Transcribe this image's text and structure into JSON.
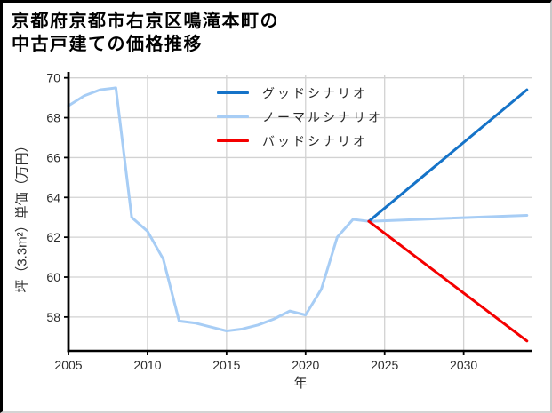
{
  "title": {
    "line1": "京都府京都市右京区鳴滝本町の",
    "line2": "中古戸建ての価格推移"
  },
  "chart_data": {
    "type": "line",
    "title": "京都府京都市右京区鳴滝本町の中古戸建ての価格推移",
    "xlabel": "年",
    "ylabel": "坪（3.3m²）単価（万円）",
    "xlim": [
      2005,
      2034.35
    ],
    "ylim": [
      56.3,
      70.12
    ],
    "xticks": [
      2005,
      2010,
      2015,
      2020,
      2025,
      2030
    ],
    "yticks": [
      58,
      60,
      62,
      64,
      66,
      68,
      70
    ],
    "grid": true,
    "grid_color": "#d2d2d2",
    "legend_position": "upper center",
    "series": [
      {
        "name": "グッドシナリオ",
        "color": "#1573C8",
        "zorder": 2,
        "x": [
          2024,
          2034
        ],
        "y": [
          62.8,
          69.4
        ]
      },
      {
        "name": "ノーマルシナリオ",
        "color": "#A7CDF5",
        "zorder": 1,
        "x": [
          2005,
          2006,
          2007,
          2008,
          2009,
          2010,
          2011,
          2012,
          2013,
          2014,
          2015,
          2016,
          2017,
          2018,
          2019,
          2020,
          2021,
          2022,
          2023,
          2024,
          2034
        ],
        "y": [
          68.6,
          69.1,
          69.4,
          69.5,
          63.0,
          62.3,
          60.9,
          57.8,
          57.7,
          57.5,
          57.3,
          57.4,
          57.6,
          57.9,
          58.3,
          58.1,
          59.4,
          62.0,
          62.9,
          62.8,
          63.1
        ]
      },
      {
        "name": "バッドシナリオ",
        "color": "#F40000",
        "zorder": 2,
        "x": [
          2024,
          2034
        ],
        "y": [
          62.8,
          56.8
        ]
      }
    ]
  }
}
